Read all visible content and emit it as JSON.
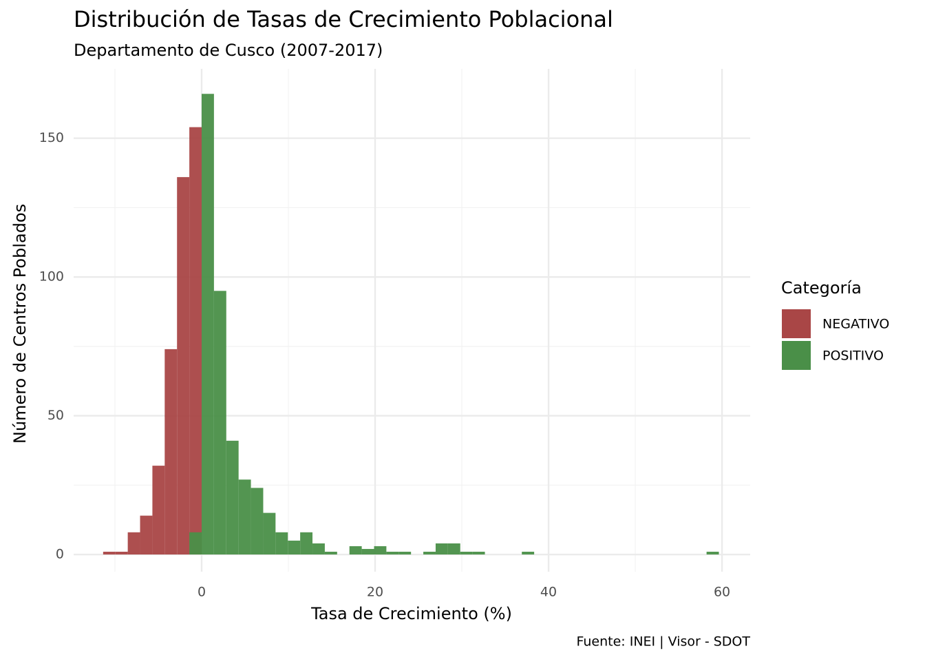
{
  "chart_data": {
    "type": "histogram",
    "title": "Distribución de Tasas de Crecimiento Poblacional",
    "subtitle": "Departamento de Cusco (2007-2017)",
    "x_label": "Tasa de Crecimiento (%)",
    "y_label": "Número de Centros Poblados",
    "caption": "Fuente: INEI | Visor - SDOT",
    "legend_title": "Categoría",
    "legend": "right",
    "bins": [
      -11.36,
      -9.94,
      -8.52,
      -7.1,
      -5.68,
      -4.26,
      -2.84,
      -1.42,
      0,
      1.42,
      2.84,
      4.26,
      5.68,
      7.1,
      8.52,
      9.94,
      11.36,
      12.78,
      14.2,
      15.62,
      17.04,
      18.46,
      19.88,
      21.3,
      22.72,
      24.14,
      25.56,
      26.98,
      28.4,
      29.82,
      31.24,
      32.66,
      34.08,
      35.5,
      36.92,
      38.34,
      39.76,
      41.18,
      42.6,
      44.02,
      45.44,
      46.86,
      48.28,
      49.7,
      51.12,
      52.54,
      53.96,
      55.38,
      56.8,
      58.22,
      59.64
    ],
    "series": [
      {
        "name": "NEGATIVO",
        "color": "#a94646",
        "values": [
          1,
          1,
          8,
          14,
          32,
          74,
          136,
          154,
          0,
          0,
          0,
          0,
          0,
          0,
          0,
          0,
          0,
          0,
          0,
          0,
          0,
          0,
          0,
          0,
          0,
          0,
          0,
          0,
          0,
          0,
          0,
          0,
          0,
          0,
          0,
          0,
          0,
          0,
          0,
          0,
          0,
          0,
          0,
          0,
          0,
          0,
          0,
          0,
          0,
          0
        ]
      },
      {
        "name": "POSITIVO",
        "color": "#4a8f48",
        "values": [
          0,
          0,
          0,
          0,
          0,
          0,
          0,
          8,
          166,
          95,
          41,
          27,
          24,
          15,
          8,
          5,
          8,
          4,
          1,
          0,
          3,
          2,
          3,
          1,
          1,
          0,
          1,
          4,
          4,
          1,
          1,
          0,
          0,
          0,
          1,
          0,
          0,
          0,
          0,
          0,
          0,
          0,
          0,
          0,
          0,
          0,
          0,
          0,
          0,
          1
        ]
      }
    ],
    "xlim": [
      -14.76,
      63.25
    ],
    "xticks": [
      0,
      20,
      40,
      60
    ],
    "xminor": [
      -10,
      10,
      30,
      50
    ],
    "ylim": [
      -6.2,
      175
    ],
    "yticks": [
      0,
      50,
      100,
      150
    ],
    "yminor": [
      25,
      75,
      125
    ],
    "grid": true
  }
}
